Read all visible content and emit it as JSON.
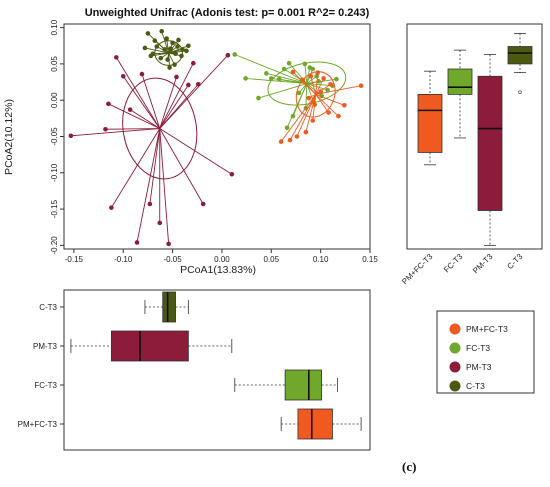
{
  "figure_label": "(c)",
  "chart_data": [
    {
      "type": "scatter",
      "title": "Unweighted Unifrac (Adonis test: p= 0.001  R^2= 0.243)",
      "xlabel": "PCoA1(13.83%)",
      "ylabel": "PCoA2(10.12%)",
      "xlim": [
        -0.16,
        0.15
      ],
      "ylim": [
        -0.205,
        0.105
      ],
      "xticks": [
        "-0.15",
        "-0.10",
        "-0.05",
        "0.00",
        "0.05",
        "0.10",
        "0.15"
      ],
      "yticks": [
        "-0.20",
        "-0.15",
        "-0.10",
        "-0.05",
        "0.00",
        "0.05",
        "0.10"
      ],
      "grid": false,
      "series": [
        {
          "name": "C-T3",
          "color": "#4a5a12",
          "center": [
            -0.054,
            0.065
          ],
          "ellipse": {
            "rx": 0.014,
            "ry": 0.017,
            "angle": 0
          },
          "points": [
            [
              -0.075,
              0.092
            ],
            [
              -0.068,
              0.082
            ],
            [
              -0.061,
              0.095
            ],
            [
              -0.056,
              0.085
            ],
            [
              -0.05,
              0.079
            ],
            [
              -0.044,
              0.083
            ],
            [
              -0.04,
              0.07
            ],
            [
              -0.036,
              0.068
            ],
            [
              -0.078,
              0.072
            ],
            [
              -0.072,
              0.061
            ],
            [
              -0.066,
              0.074
            ],
            [
              -0.058,
              0.07
            ],
            [
              -0.052,
              0.071
            ],
            [
              -0.047,
              0.064
            ],
            [
              -0.041,
              0.061
            ],
            [
              -0.048,
              0.049
            ],
            [
              -0.053,
              0.045
            ],
            [
              -0.062,
              0.058
            ],
            [
              -0.07,
              0.064
            ],
            [
              -0.034,
              0.075
            ],
            [
              -0.055,
              0.056
            ],
            [
              -0.045,
              0.074
            ]
          ]
        },
        {
          "name": "PM-T3",
          "color": "#8c1c3a",
          "center": [
            -0.063,
            -0.039
          ],
          "ellipse": {
            "rx": 0.037,
            "ry": 0.07,
            "angle": -10
          },
          "points": [
            [
              -0.153,
              -0.049
            ],
            [
              -0.112,
              -0.148
            ],
            [
              -0.118,
              -0.04
            ],
            [
              -0.086,
              -0.196
            ],
            [
              -0.063,
              -0.169
            ],
            [
              -0.054,
              -0.198
            ],
            [
              -0.029,
              0.051
            ],
            [
              -0.046,
              0.032
            ],
            [
              -0.081,
              0.036
            ],
            [
              -0.1,
              0.033
            ],
            [
              -0.107,
              0.059
            ],
            [
              -0.073,
              -0.143
            ],
            [
              -0.024,
              0.022
            ],
            [
              -0.034,
              0.021
            ],
            [
              -0.115,
              -0.005
            ],
            [
              -0.093,
              -0.013
            ],
            [
              0.01,
              -0.102
            ],
            [
              -0.019,
              -0.143
            ],
            [
              0.006,
              0.062
            ]
          ]
        },
        {
          "name": "FC-T3",
          "color": "#6fa82a",
          "center": [
            0.086,
            0.023
          ],
          "ellipse": {
            "rx": 0.04,
            "ry": 0.028,
            "angle": -12
          },
          "points": [
            [
              0.013,
              0.063
            ],
            [
              0.024,
              0.03
            ],
            [
              0.037,
              0.003
            ],
            [
              0.045,
              0.037
            ],
            [
              0.05,
              0.03
            ],
            [
              0.058,
              0.029
            ],
            [
              0.063,
              0.043
            ],
            [
              0.068,
              0.051
            ],
            [
              0.084,
              0.05
            ],
            [
              0.089,
              0.045
            ],
            [
              0.092,
              0.043
            ],
            [
              0.096,
              0.033
            ],
            [
              0.098,
              0.026
            ],
            [
              0.112,
              0.02
            ],
            [
              0.116,
              0.029
            ],
            [
              0.107,
              0.014
            ],
            [
              0.101,
              0.006
            ],
            [
              0.093,
              -0.003
            ],
            [
              0.085,
              -0.011
            ],
            [
              0.066,
              -0.038
            ],
            [
              0.072,
              -0.022
            ],
            [
              0.078,
              0.01
            ],
            [
              0.081,
              0.028
            ]
          ]
        },
        {
          "name": "PM+FC-T3",
          "color": "#f05a1e",
          "center": [
            0.095,
            0.008
          ],
          "ellipse": {
            "rx": 0.019,
            "ry": 0.032,
            "angle": 22
          },
          "points": [
            [
              0.072,
              0.039
            ],
            [
              0.082,
              0.028
            ],
            [
              0.09,
              0.033
            ],
            [
              0.097,
              0.038
            ],
            [
              0.103,
              0.03
            ],
            [
              0.11,
              0.022
            ],
            [
              0.141,
              0.02
            ],
            [
              0.124,
              -0.007
            ],
            [
              0.118,
              -0.022
            ],
            [
              0.108,
              -0.017
            ],
            [
              0.092,
              -0.028
            ],
            [
              0.085,
              -0.044
            ],
            [
              0.076,
              -0.05
            ],
            [
              0.069,
              -0.055
            ],
            [
              0.06,
              -0.057
            ],
            [
              0.088,
              0.003
            ],
            [
              0.094,
              -0.006
            ],
            [
              0.1,
              0.012
            ]
          ]
        }
      ]
    },
    {
      "type": "boxplot",
      "orientation": "vertical",
      "axis": "PCoA2",
      "ylim": [
        -0.205,
        0.105
      ],
      "categories": [
        "PM+FC-T3",
        "FC-T3",
        "PM-T3",
        "C-T3"
      ],
      "boxes": [
        {
          "name": "PM+FC-T3",
          "color": "#f05a1e",
          "min": -0.089,
          "q1": -0.072,
          "median": -0.014,
          "q3": 0.008,
          "max": 0.04,
          "outliers": []
        },
        {
          "name": "FC-T3",
          "color": "#6fa82a",
          "min": -0.052,
          "q1": 0.008,
          "median": 0.018,
          "q3": 0.043,
          "max": 0.069,
          "outliers": []
        },
        {
          "name": "PM-T3",
          "color": "#8c1c3a",
          "min": -0.2,
          "q1": -0.152,
          "median": -0.039,
          "q3": 0.033,
          "max": 0.063,
          "outliers": []
        },
        {
          "name": "C-T3",
          "color": "#4a5a12",
          "min": 0.038,
          "q1": 0.05,
          "median": 0.065,
          "q3": 0.074,
          "max": 0.092,
          "outliers": [
            0.011
          ]
        }
      ]
    },
    {
      "type": "boxplot",
      "orientation": "horizontal",
      "axis": "PCoA1",
      "xlim": [
        -0.16,
        0.15
      ],
      "categories": [
        "C-T3",
        "PM-T3",
        "FC-T3",
        "PM+FC-T3"
      ],
      "boxes": [
        {
          "name": "C-T3",
          "color": "#4a5a12",
          "min": -0.078,
          "q1": -0.06,
          "median": -0.055,
          "q3": -0.047,
          "max": -0.034,
          "outliers": []
        },
        {
          "name": "PM-T3",
          "color": "#8c1c3a",
          "min": -0.153,
          "q1": -0.112,
          "median": -0.083,
          "q3": -0.034,
          "max": 0.01,
          "outliers": []
        },
        {
          "name": "FC-T3",
          "color": "#6fa82a",
          "min": 0.013,
          "q1": 0.064,
          "median": 0.088,
          "q3": 0.101,
          "max": 0.117,
          "outliers": []
        },
        {
          "name": "PM+FC-T3",
          "color": "#f05a1e",
          "min": 0.06,
          "q1": 0.077,
          "median": 0.091,
          "q3": 0.112,
          "max": 0.141,
          "outliers": []
        }
      ]
    }
  ],
  "legend": [
    {
      "label": "PM+FC-T3",
      "color": "#f05a1e"
    },
    {
      "label": "FC-T3",
      "color": "#6fa82a"
    },
    {
      "label": "PM-T3",
      "color": "#8c1c3a"
    },
    {
      "label": "C-T3",
      "color": "#4a5a12"
    }
  ]
}
